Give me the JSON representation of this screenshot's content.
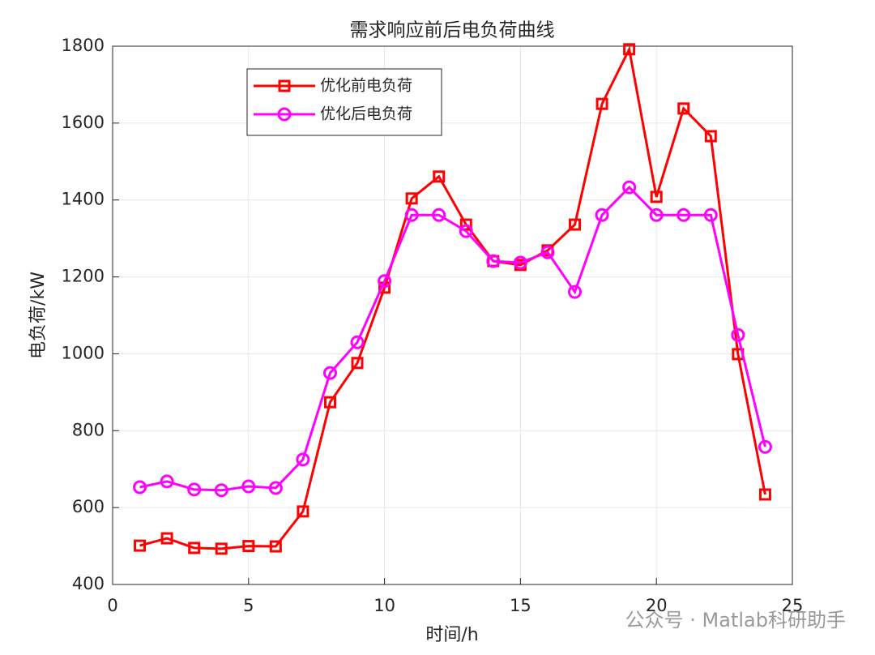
{
  "chart_data": {
    "type": "line",
    "title": "需求响应前后电负荷曲线",
    "xlabel": "时间/h",
    "ylabel": "电负荷/kW",
    "x": [
      1,
      2,
      3,
      4,
      5,
      6,
      7,
      8,
      9,
      10,
      11,
      12,
      13,
      14,
      15,
      16,
      17,
      18,
      19,
      20,
      21,
      22,
      23,
      24
    ],
    "series": [
      {
        "name": "优化前电负荷",
        "color": "#ff0000",
        "marker": "square",
        "values": [
          501,
          520,
          495,
          493,
          500,
          499,
          590,
          874,
          976,
          1172,
          1404,
          1461,
          1336,
          1241,
          1231,
          1269,
          1336,
          1650,
          1792,
          1408,
          1638,
          1566,
          999,
          634
        ]
      },
      {
        "name": "优化后电负荷",
        "color": "#ff00ff",
        "marker": "circle",
        "values": [
          653,
          668,
          647,
          645,
          655,
          651,
          725,
          950,
          1030,
          1189,
          1361,
          1361,
          1319,
          1241,
          1237,
          1264,
          1161,
          1361,
          1433,
          1361,
          1361,
          1361,
          1049,
          758
        ]
      }
    ],
    "xlim": [
      0,
      25
    ],
    "xticks": [
      0,
      5,
      10,
      15,
      20,
      25
    ],
    "ylim": [
      400,
      1800
    ],
    "yticks": [
      400,
      600,
      800,
      1000,
      1200,
      1400,
      1600,
      1800
    ],
    "grid": true,
    "legend": "upper left",
    "watermark": "公众号 · Matlab科研助手"
  }
}
